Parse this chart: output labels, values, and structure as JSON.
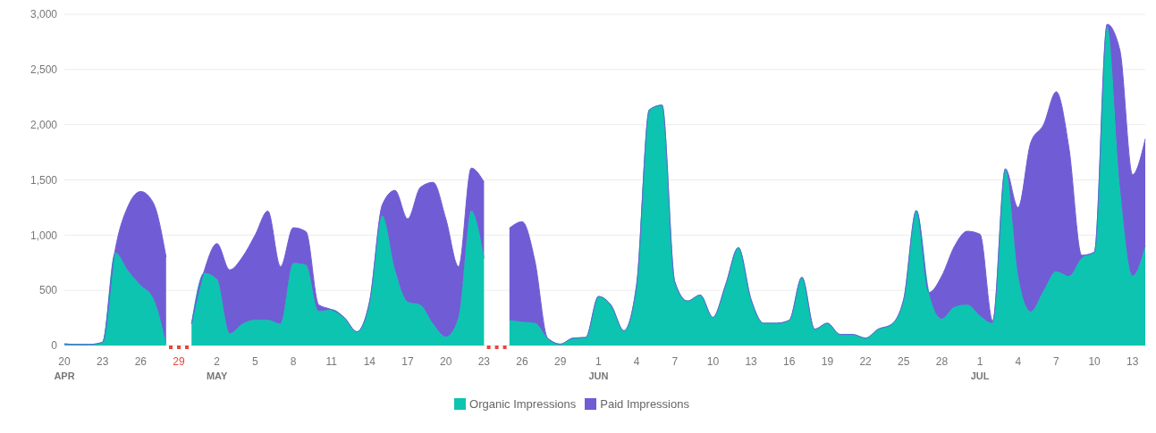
{
  "chart_data": {
    "type": "area",
    "stacked": true,
    "categories": [
      "20\nAPR",
      null,
      null,
      "23",
      null,
      null,
      "26",
      null,
      null,
      "29",
      null,
      null,
      "2\nMAY",
      null,
      null,
      "5",
      null,
      null,
      "8",
      null,
      null,
      "11",
      null,
      null,
      "14",
      null,
      null,
      "17",
      null,
      null,
      "20",
      null,
      null,
      "23",
      null,
      null,
      "26",
      null,
      null,
      "29",
      null,
      null,
      "1\nJUN",
      null,
      null,
      "4",
      null,
      null,
      "7",
      null,
      null,
      "10",
      null,
      null,
      "13",
      null,
      null,
      "16",
      null,
      null,
      "19",
      null,
      null,
      "22",
      null,
      null,
      "25",
      null,
      null,
      "28",
      null,
      null,
      "1\nJUL",
      null,
      null,
      "4",
      null,
      null,
      "7",
      null,
      null,
      "10",
      null,
      null,
      "13",
      null
    ],
    "series": [
      {
        "name": "Organic Impressions",
        "color": "#0cc4b0",
        "values": [
          15,
          10,
          10,
          30,
          840,
          680,
          545,
          426,
          20,
          null,
          197,
          657,
          600,
          110,
          197,
          232,
          232,
          197,
          745,
          730,
          311,
          326,
          255,
          125,
          397,
          1175,
          685,
          397,
          368,
          197,
          80,
          255,
          1218,
          790,
          null,
          228,
          215,
          204,
          67,
          13,
          67,
          73,
          444,
          363,
          134,
          550,
          2135,
          2177,
          578,
          403,
          457,
          255,
          550,
          887,
          417,
          202,
          202,
          228,
          618,
          148,
          202,
          100,
          100,
          67,
          148,
          188,
          417,
          1223,
          470,
          242,
          350,
          370,
          269,
          202,
          1600,
          630,
          308,
          497,
          672,
          630,
          793,
          847,
          2890,
          1438,
          630,
          902
        ]
      },
      {
        "name": "Paid Impressions",
        "color": "#705cd4",
        "values": [
          0,
          0,
          0,
          0,
          30,
          580,
          850,
          864,
          780,
          null,
          0,
          20,
          323,
          575,
          603,
          768,
          986,
          517,
          322,
          301,
          57,
          0,
          0,
          0,
          0,
          100,
          720,
          750,
          1065,
          1281,
          1067,
          459,
          389,
          690,
          null,
          835,
          906,
          563,
          0,
          0,
          0,
          0,
          0,
          0,
          0,
          0,
          0,
          0,
          0,
          0,
          0,
          0,
          0,
          0,
          0,
          0,
          0,
          0,
          0,
          0,
          0,
          0,
          0,
          0,
          0,
          0,
          0,
          0,
          10,
          388,
          550,
          665,
          739,
          20,
          0,
          620,
          1532,
          1503,
          1626,
          1158,
          24,
          0,
          20,
          1239,
          918,
          969
        ]
      }
    ],
    "ylim": [
      0,
      3000
    ],
    "yticks": [
      0,
      500,
      {
        "value": 1000,
        "label": "1,000"
      },
      {
        "value": 1500,
        "label": "1,500"
      },
      {
        "value": 2000,
        "label": "2,000"
      },
      {
        "value": 2500,
        "label": "2,500"
      },
      {
        "value": 3000,
        "label": "3,000"
      }
    ],
    "grid": "y",
    "legend": "bottom"
  }
}
